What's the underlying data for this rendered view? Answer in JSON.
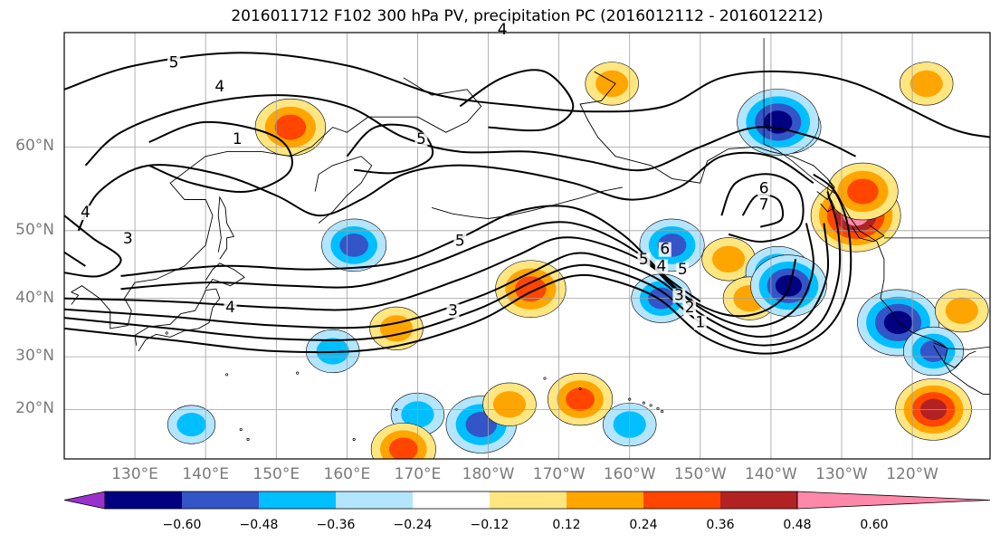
{
  "title": "2016011712 F102 300 hPa PV, precipitation PC (2016012112 - 2016012212)",
  "map": {
    "lat_labels": [
      "60°N",
      "50°N",
      "40°N",
      "30°N",
      "20°N"
    ],
    "lat_values": [
      60,
      50,
      40,
      30,
      20
    ],
    "lon_labels": [
      "130°E",
      "140°E",
      "150°E",
      "160°E",
      "170°E",
      "180°W",
      "170°W",
      "160°W",
      "150°W",
      "140°W",
      "130°W",
      "120°W"
    ],
    "lon_values": [
      130,
      140,
      150,
      160,
      170,
      180,
      190,
      200,
      210,
      220,
      230,
      240
    ],
    "pv_contour_labels": [
      "5",
      "4",
      "1",
      "5",
      "4",
      "5",
      "3",
      "4",
      "5",
      "6",
      "7",
      "6",
      "4",
      "5",
      "3",
      "2",
      "1",
      "3",
      "4"
    ],
    "precip_pc_blobs": [
      {
        "lat": 62.0,
        "lon": 152.0,
        "v": 0.45
      },
      {
        "lat": 62.0,
        "lon": 222.5,
        "v": -0.4
      },
      {
        "lat": 62.5,
        "lon": 221.0,
        "v": -0.55
      },
      {
        "lat": 66.0,
        "lon": 197.5,
        "v": 0.3
      },
      {
        "lat": 66.0,
        "lon": 242.0,
        "v": 0.3
      },
      {
        "lat": 52.0,
        "lon": 232.0,
        "v": 0.62
      },
      {
        "lat": 55.0,
        "lon": 233.0,
        "v": 0.45
      },
      {
        "lat": 48.0,
        "lon": 161.0,
        "v": -0.4
      },
      {
        "lat": 48.0,
        "lon": 206.0,
        "v": -0.4
      },
      {
        "lat": 46.0,
        "lon": 214.0,
        "v": 0.3
      },
      {
        "lat": 44.0,
        "lon": 221.0,
        "v": -0.4
      },
      {
        "lat": 41.5,
        "lon": 186.0,
        "v": 0.45
      },
      {
        "lat": 40.0,
        "lon": 204.5,
        "v": -0.36
      },
      {
        "lat": 40.0,
        "lon": 217.0,
        "v": 0.3
      },
      {
        "lat": 36.0,
        "lon": 238.0,
        "v": -0.55
      },
      {
        "lat": 35.0,
        "lon": 167.0,
        "v": 0.3
      },
      {
        "lat": 38.0,
        "lon": 247.0,
        "v": 0.3
      },
      {
        "lat": 31.0,
        "lon": 243.0,
        "v": -0.36
      },
      {
        "lat": 20.0,
        "lon": 243.0,
        "v": 0.5
      },
      {
        "lat": 22.0,
        "lon": 193.0,
        "v": 0.4
      },
      {
        "lat": 17.0,
        "lon": 179.0,
        "v": -0.45
      },
      {
        "lat": 17.0,
        "lon": 200.0,
        "v": -0.3
      },
      {
        "lat": 19.0,
        "lon": 170.0,
        "v": -0.3
      },
      {
        "lat": 21.0,
        "lon": 183.0,
        "v": 0.3
      },
      {
        "lat": 31.0,
        "lon": 158.0,
        "v": -0.3
      },
      {
        "lat": 17.0,
        "lon": 138.0,
        "v": -0.25
      },
      {
        "lat": 12.0,
        "lon": 168.0,
        "v": 0.4
      },
      {
        "lat": 42.0,
        "lon": 222.5,
        "v": -0.5
      }
    ]
  },
  "colorbar": {
    "labels": [
      "−0.60",
      "−0.48",
      "−0.36",
      "−0.24",
      "−0.12",
      "0.12",
      "0.24",
      "0.36",
      "0.48",
      "0.60"
    ],
    "colors": [
      "#9932cc",
      "#000080",
      "#3455c8",
      "#00bfff",
      "#b3e5ff",
      "#ffffff",
      "#ffe680",
      "#ffa500",
      "#ff4500",
      "#b22222",
      "#ff88aa"
    ]
  }
}
